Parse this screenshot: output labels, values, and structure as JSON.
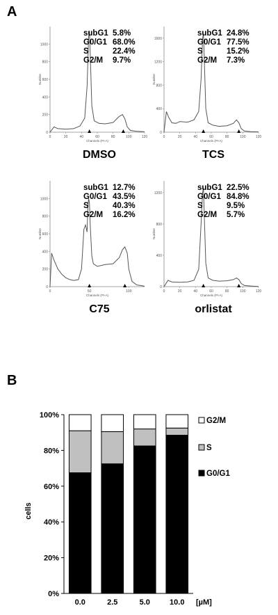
{
  "panel_a_label": "A",
  "panel_b_label": "B",
  "chart_data": [
    {
      "type": "line",
      "title": "DMSO",
      "xlabel": "Channels (PI-A)",
      "ylabel": "Number",
      "xticks": [
        0,
        20,
        40,
        60,
        80,
        100,
        120
      ],
      "yticks": [
        0,
        200,
        400,
        600,
        800,
        1000
      ],
      "xlim": [
        0,
        120
      ],
      "ylim": [
        0,
        1200
      ],
      "markers": [
        50,
        93
      ],
      "stats": [
        {
          "label": "subG1",
          "value": "5.8%"
        },
        {
          "label": "G0/G1",
          "value": "68.0%"
        },
        {
          "label": "S",
          "value": "22.4%"
        },
        {
          "label": "G2/M",
          "value": "9.7%"
        }
      ],
      "series": [
        {
          "x": [
            0,
            5,
            10,
            20,
            30,
            38,
            44,
            47,
            49,
            50,
            51,
            53,
            56,
            62,
            70,
            80,
            88,
            92,
            95,
            98,
            102,
            110,
            120
          ],
          "y": [
            0,
            60,
            40,
            35,
            40,
            70,
            160,
            520,
            1080,
            1150,
            900,
            300,
            130,
            100,
            95,
            110,
            180,
            200,
            150,
            60,
            20,
            10,
            5
          ]
        }
      ]
    },
    {
      "type": "line",
      "title": "TCS",
      "xlabel": "Channels (PI-A)",
      "ylabel": "Number",
      "xticks": [
        0,
        20,
        40,
        60,
        80,
        100,
        120
      ],
      "yticks": [
        0,
        400,
        800,
        1200,
        1600
      ],
      "xlim": [
        0,
        120
      ],
      "ylim": [
        0,
        1800
      ],
      "markers": [
        50,
        95
      ],
      "stats": [
        {
          "label": "subG1",
          "value": "24.8%"
        },
        {
          "label": "G0/G1",
          "value": "77.5%"
        },
        {
          "label": "S",
          "value": "15.2%"
        },
        {
          "label": "G2/M",
          "value": "7.3%"
        }
      ],
      "series": [
        {
          "x": [
            0,
            3,
            6,
            10,
            15,
            20,
            30,
            38,
            44,
            47,
            49,
            50,
            51,
            53,
            56,
            62,
            70,
            80,
            88,
            92,
            95,
            98,
            102,
            110,
            120
          ],
          "y": [
            0,
            350,
            250,
            160,
            150,
            180,
            170,
            210,
            350,
            900,
            1600,
            1680,
            1300,
            400,
            160,
            120,
            100,
            110,
            150,
            210,
            160,
            60,
            20,
            10,
            5
          ]
        }
      ]
    },
    {
      "type": "line",
      "title": "C75",
      "xlabel": "Channels (PI-A)",
      "ylabel": "Number",
      "xticks": [
        0,
        50,
        100
      ],
      "yticks": [
        0,
        200,
        400,
        600,
        800,
        1000
      ],
      "xlim": [
        0,
        120
      ],
      "ylim": [
        0,
        1200
      ],
      "markers": [
        50,
        95
      ],
      "stats": [
        {
          "label": "subG1",
          "value": "12.7%"
        },
        {
          "label": "G0/G1",
          "value": "43.5%"
        },
        {
          "label": "S",
          "value": "40.3%"
        },
        {
          "label": "G2/M",
          "value": "16.2%"
        }
      ],
      "series": [
        {
          "x": [
            0,
            2,
            5,
            10,
            15,
            20,
            25,
            30,
            36,
            40,
            43,
            45,
            47,
            48,
            49,
            50,
            51,
            53,
            55,
            60,
            70,
            80,
            88,
            92,
            95,
            98,
            100,
            104,
            110,
            120
          ],
          "y": [
            0,
            380,
            300,
            200,
            140,
            100,
            80,
            70,
            80,
            200,
            650,
            700,
            620,
            900,
            1000,
            950,
            700,
            350,
            260,
            230,
            250,
            260,
            330,
            420,
            450,
            380,
            200,
            60,
            20,
            5
          ]
        }
      ]
    },
    {
      "type": "line",
      "title": "orlistat",
      "xlabel": "Channels (PI-A)",
      "ylabel": "Number",
      "xticks": [
        0,
        20,
        40,
        60,
        80,
        100,
        120
      ],
      "yticks": [
        0,
        400,
        800,
        1200
      ],
      "xlim": [
        0,
        120
      ],
      "ylim": [
        0,
        1350
      ],
      "markers": [
        50,
        95
      ],
      "stats": [
        {
          "label": "subG1",
          "value": "22.5%"
        },
        {
          "label": "G0/G1",
          "value": "84.8%"
        },
        {
          "label": "S",
          "value": "9.5%"
        },
        {
          "label": "G2/M",
          "value": "5.7%"
        }
      ],
      "series": [
        {
          "x": [
            0,
            5,
            10,
            20,
            30,
            38,
            44,
            47,
            49,
            50,
            51,
            53,
            56,
            62,
            70,
            80,
            88,
            92,
            95,
            98,
            102,
            110,
            120
          ],
          "y": [
            0,
            80,
            60,
            55,
            60,
            80,
            220,
            800,
            1200,
            1260,
            950,
            300,
            110,
            80,
            70,
            75,
            90,
            110,
            90,
            40,
            15,
            8,
            3
          ]
        }
      ]
    },
    {
      "type": "bar",
      "stacked": true,
      "categories": [
        "0.0",
        "2.5",
        "5.0",
        "10.0"
      ],
      "xunit": "[µM]",
      "ylabel": "cells",
      "ylim": [
        0,
        100
      ],
      "yticks": [
        "0%",
        "20%",
        "40%",
        "60%",
        "80%",
        "100%"
      ],
      "legend_position": "right",
      "series": [
        {
          "name": "G0/G1",
          "color": "#000000",
          "values": [
            67.5,
            72.5,
            82.5,
            88.5
          ]
        },
        {
          "name": "S",
          "color": "#c0c0c0",
          "values": [
            23.5,
            18.0,
            9.5,
            4.0
          ]
        },
        {
          "name": "G2/M",
          "color": "#ffffff",
          "values": [
            9.0,
            9.5,
            8.0,
            7.5
          ]
        }
      ]
    }
  ]
}
